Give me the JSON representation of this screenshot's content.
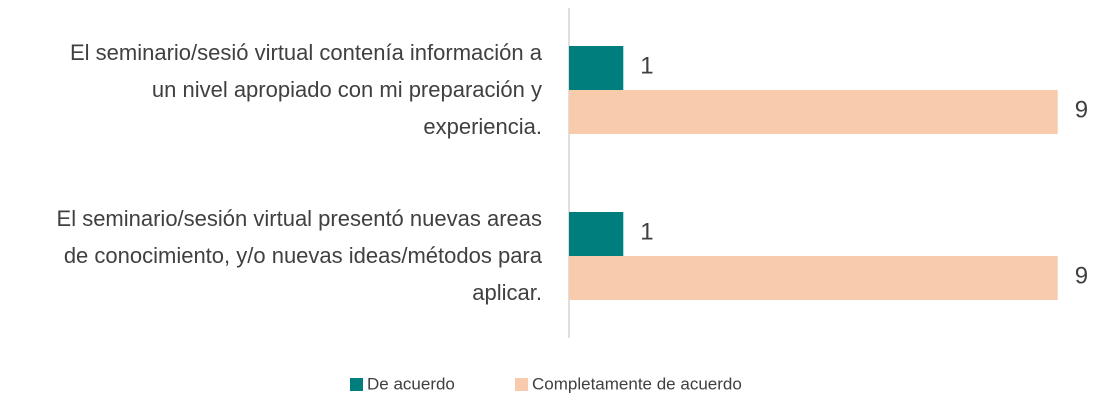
{
  "chart_data": {
    "type": "hbar",
    "categories": [
      "El seminario/sesió virtual contenía información a un nivel apropiado con mi preparación y experiencia.",
      "El seminario/sesión virtual presentó nuevas areas de conocimiento, y/o nuevas ideas/métodos para aplicar."
    ],
    "series": [
      {
        "name": "De acuerdo",
        "color": "#007e7e",
        "values": [
          1,
          1
        ]
      },
      {
        "name": "Completamente de acuerdo",
        "color": "#f8cbad",
        "values": [
          9,
          9
        ]
      }
    ],
    "xlim": [
      0,
      10
    ]
  }
}
